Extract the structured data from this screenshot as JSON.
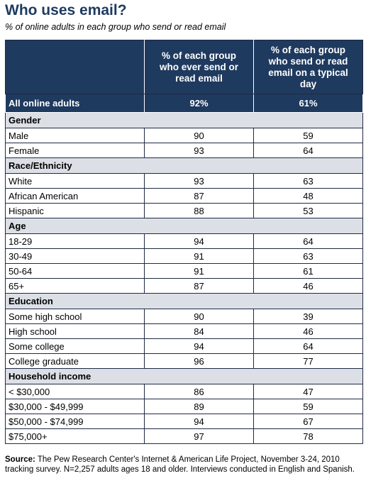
{
  "title": "Who uses email?",
  "subtitle": "% of online adults in each group who send or read email",
  "chart_data": {
    "type": "table",
    "columns": [
      "",
      "% of each group who ever send or read email",
      "% of each group who send or read email on a typical day"
    ],
    "total": {
      "label": "All online adults",
      "ever": "92%",
      "typical_day": "61%"
    },
    "sections": [
      {
        "name": "Gender",
        "rows": [
          {
            "label": "Male",
            "ever": 90,
            "typical_day": 59
          },
          {
            "label": "Female",
            "ever": 93,
            "typical_day": 64
          }
        ]
      },
      {
        "name": "Race/Ethnicity",
        "rows": [
          {
            "label": "White",
            "ever": 93,
            "typical_day": 63
          },
          {
            "label": "African American",
            "ever": 87,
            "typical_day": 48
          },
          {
            "label": "Hispanic",
            "ever": 88,
            "typical_day": 53
          }
        ]
      },
      {
        "name": "Age",
        "rows": [
          {
            "label": "18-29",
            "ever": 94,
            "typical_day": 64
          },
          {
            "label": "30-49",
            "ever": 91,
            "typical_day": 63
          },
          {
            "label": "50-64",
            "ever": 91,
            "typical_day": 61
          },
          {
            "label": "65+",
            "ever": 87,
            "typical_day": 46
          }
        ]
      },
      {
        "name": "Education",
        "rows": [
          {
            "label": "Some high school",
            "ever": 90,
            "typical_day": 39
          },
          {
            "label": "High school",
            "ever": 84,
            "typical_day": 46
          },
          {
            "label": "Some college",
            "ever": 94,
            "typical_day": 64
          },
          {
            "label": "College graduate",
            "ever": 96,
            "typical_day": 77
          }
        ]
      },
      {
        "name": "Household income",
        "rows": [
          {
            "label": "< $30,000",
            "ever": 86,
            "typical_day": 47
          },
          {
            "label": "$30,000 - $49,999",
            "ever": 89,
            "typical_day": 59
          },
          {
            "label": "$50,000 - $74,999",
            "ever": 94,
            "typical_day": 67
          },
          {
            "label": "$75,000+",
            "ever": 97,
            "typical_day": 78
          }
        ]
      }
    ]
  },
  "source": {
    "label": "Source:",
    "text": "The Pew Research Center's Internet & American Life Project, November 3-24, 2010 tracking survey. N=2,257 adults ages 18 and older. Interviews conducted in English and Spanish."
  },
  "colors": {
    "header": "#1f3a5f",
    "section": "#dce0e6"
  }
}
